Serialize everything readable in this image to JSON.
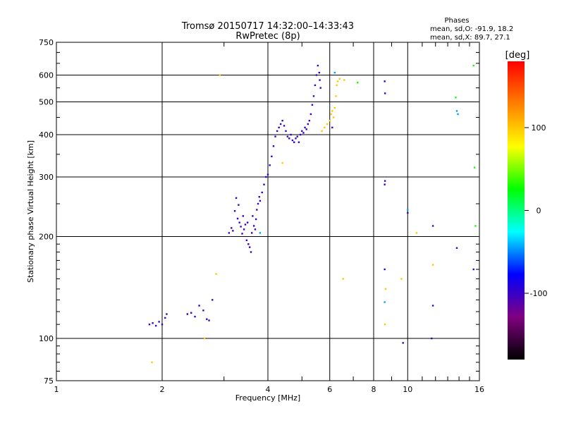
{
  "chart_data": {
    "type": "scatter",
    "title": "Tromsø 20150717 14:32:00–14:33:43",
    "subtitle": "RwPretec (8p)",
    "xlabel": "Frequency [MHz]",
    "ylabel": "Stationary phase Virtual Height [km]",
    "x_scale": "log",
    "y_scale": "log",
    "xlim": [
      1,
      16
    ],
    "ylim": [
      75,
      750
    ],
    "x_ticks": [
      1,
      2,
      4,
      6,
      8,
      10,
      16
    ],
    "y_ticks": [
      75,
      100,
      200,
      300,
      400,
      500,
      600,
      750
    ],
    "grid": true,
    "phases_box": {
      "title": "Phases",
      "line1": "mean, sd,O: -91.9, 18.2",
      "line2": "mean, sd,X:  89.7, 27.1"
    },
    "colorbar": {
      "label": "[deg]",
      "range": [
        -180,
        180
      ],
      "ticks": [
        100,
        0,
        -100
      ],
      "colors": [
        "#ff0000",
        "#ff8000",
        "#ffff00",
        "#00ff00",
        "#00ffff",
        "#0000ff",
        "#800080",
        "#000000"
      ]
    },
    "series": [
      {
        "color_phase_deg": -100,
        "points": [
          [
            1.84,
            110
          ],
          [
            1.88,
            111
          ],
          [
            1.92,
            109
          ],
          [
            1.96,
            112
          ],
          [
            2.0,
            110
          ],
          [
            2.04,
            115
          ],
          [
            2.06,
            118
          ],
          [
            2.36,
            118
          ],
          [
            2.42,
            119
          ],
          [
            2.48,
            116
          ],
          [
            2.55,
            125
          ],
          [
            2.62,
            121
          ],
          [
            2.68,
            114
          ],
          [
            2.72,
            113
          ],
          [
            2.78,
            130
          ],
          [
            3.1,
            205
          ],
          [
            3.15,
            212
          ],
          [
            3.18,
            208
          ],
          [
            3.22,
            238
          ],
          [
            3.25,
            260
          ],
          [
            3.28,
            226
          ],
          [
            3.3,
            248
          ],
          [
            3.32,
            220
          ],
          [
            3.35,
            214
          ],
          [
            3.38,
            204
          ],
          [
            3.4,
            230
          ],
          [
            3.42,
            210
          ],
          [
            3.45,
            217
          ],
          [
            3.48,
            195
          ],
          [
            3.5,
            220
          ],
          [
            3.52,
            190
          ],
          [
            3.55,
            186
          ],
          [
            3.58,
            180
          ],
          [
            3.6,
            205
          ],
          [
            3.62,
            230
          ],
          [
            3.65,
            215
          ],
          [
            3.68,
            210
          ],
          [
            3.7,
            225
          ],
          [
            3.72,
            240
          ],
          [
            3.75,
            250
          ],
          [
            3.78,
            262
          ],
          [
            3.8,
            255
          ],
          [
            3.85,
            270
          ],
          [
            3.9,
            285
          ],
          [
            3.95,
            300
          ],
          [
            4.0,
            305
          ],
          [
            4.05,
            325
          ],
          [
            4.1,
            345
          ],
          [
            4.15,
            370
          ],
          [
            4.2,
            395
          ],
          [
            4.25,
            410
          ],
          [
            4.3,
            420
          ],
          [
            4.35,
            430
          ],
          [
            4.4,
            440
          ],
          [
            4.45,
            425
          ],
          [
            4.5,
            410
          ],
          [
            4.55,
            395
          ],
          [
            4.6,
            390
          ],
          [
            4.65,
            400
          ],
          [
            4.7,
            385
          ],
          [
            4.75,
            380
          ],
          [
            4.8,
            390
          ],
          [
            4.85,
            395
          ],
          [
            4.9,
            380
          ],
          [
            4.95,
            400
          ],
          [
            5.0,
            410
          ],
          [
            5.05,
            405
          ],
          [
            5.1,
            420
          ],
          [
            5.15,
            415
          ],
          [
            5.2,
            430
          ],
          [
            5.25,
            440
          ],
          [
            5.3,
            460
          ],
          [
            5.35,
            490
          ],
          [
            5.4,
            520
          ],
          [
            5.45,
            560
          ],
          [
            5.5,
            600
          ],
          [
            5.55,
            640
          ],
          [
            5.6,
            610
          ],
          [
            5.62,
            580
          ],
          [
            5.65,
            550
          ],
          [
            6.1,
            420
          ],
          [
            8.6,
            575
          ],
          [
            8.62,
            530
          ],
          [
            8.6,
            285
          ],
          [
            8.62,
            292
          ],
          [
            8.6,
            160
          ],
          [
            11.8,
            215
          ],
          [
            11.7,
            100
          ],
          [
            11.8,
            125
          ],
          [
            13.8,
            185
          ],
          [
            15.4,
            160
          ],
          [
            10.0,
            235
          ],
          [
            9.7,
            97
          ]
        ]
      },
      {
        "color_phase_deg": 100,
        "points": [
          [
            2.92,
            600
          ],
          [
            2.85,
            155
          ],
          [
            2.64,
            100
          ],
          [
            1.87,
            85
          ],
          [
            5.7,
            410
          ],
          [
            5.8,
            420
          ],
          [
            5.9,
            430
          ],
          [
            6.0,
            440
          ],
          [
            6.05,
            460
          ],
          [
            6.1,
            470
          ],
          [
            6.15,
            450
          ],
          [
            6.2,
            480
          ],
          [
            6.25,
            520
          ],
          [
            6.28,
            560
          ],
          [
            6.32,
            575
          ],
          [
            6.4,
            585
          ],
          [
            6.6,
            580
          ],
          [
            8.65,
            140
          ],
          [
            8.62,
            110
          ],
          [
            9.6,
            150
          ],
          [
            10.6,
            205
          ],
          [
            11.8,
            165
          ],
          [
            4.4,
            330
          ],
          [
            6.55,
            150
          ]
        ]
      },
      {
        "color_phase_deg": 30,
        "points": [
          [
            7.2,
            570
          ],
          [
            13.7,
            515
          ],
          [
            15.4,
            640
          ],
          [
            15.5,
            320
          ],
          [
            15.6,
            215
          ]
        ]
      },
      {
        "color_phase_deg": -45,
        "points": [
          [
            6.2,
            610
          ],
          [
            13.8,
            470
          ],
          [
            13.9,
            460
          ],
          [
            10.0,
            240
          ],
          [
            8.6,
            128
          ],
          [
            3.8,
            205
          ]
        ]
      }
    ]
  }
}
